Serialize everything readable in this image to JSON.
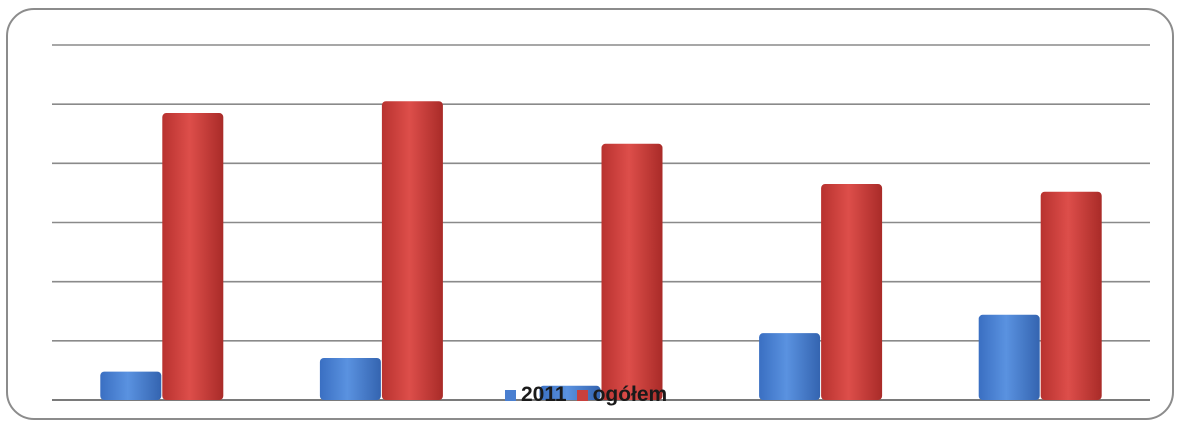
{
  "chart_data": {
    "type": "bar",
    "title": "",
    "xlabel": "",
    "ylabel": "",
    "categories": [
      "",
      "",
      "",
      "",
      ""
    ],
    "ylim": [
      0,
      6
    ],
    "gridlines": [
      0,
      1,
      2,
      3,
      4,
      5,
      6
    ],
    "grid": true,
    "legend_position": "bottom",
    "series": [
      {
        "name": "2011",
        "color": "#4a7fd0",
        "values": [
          0.48,
          0.71,
          0.24,
          1.13,
          1.44
        ]
      },
      {
        "name": "ogółem",
        "color": "#c8403d",
        "values": [
          4.85,
          5.05,
          4.33,
          3.65,
          3.52
        ]
      }
    ]
  }
}
